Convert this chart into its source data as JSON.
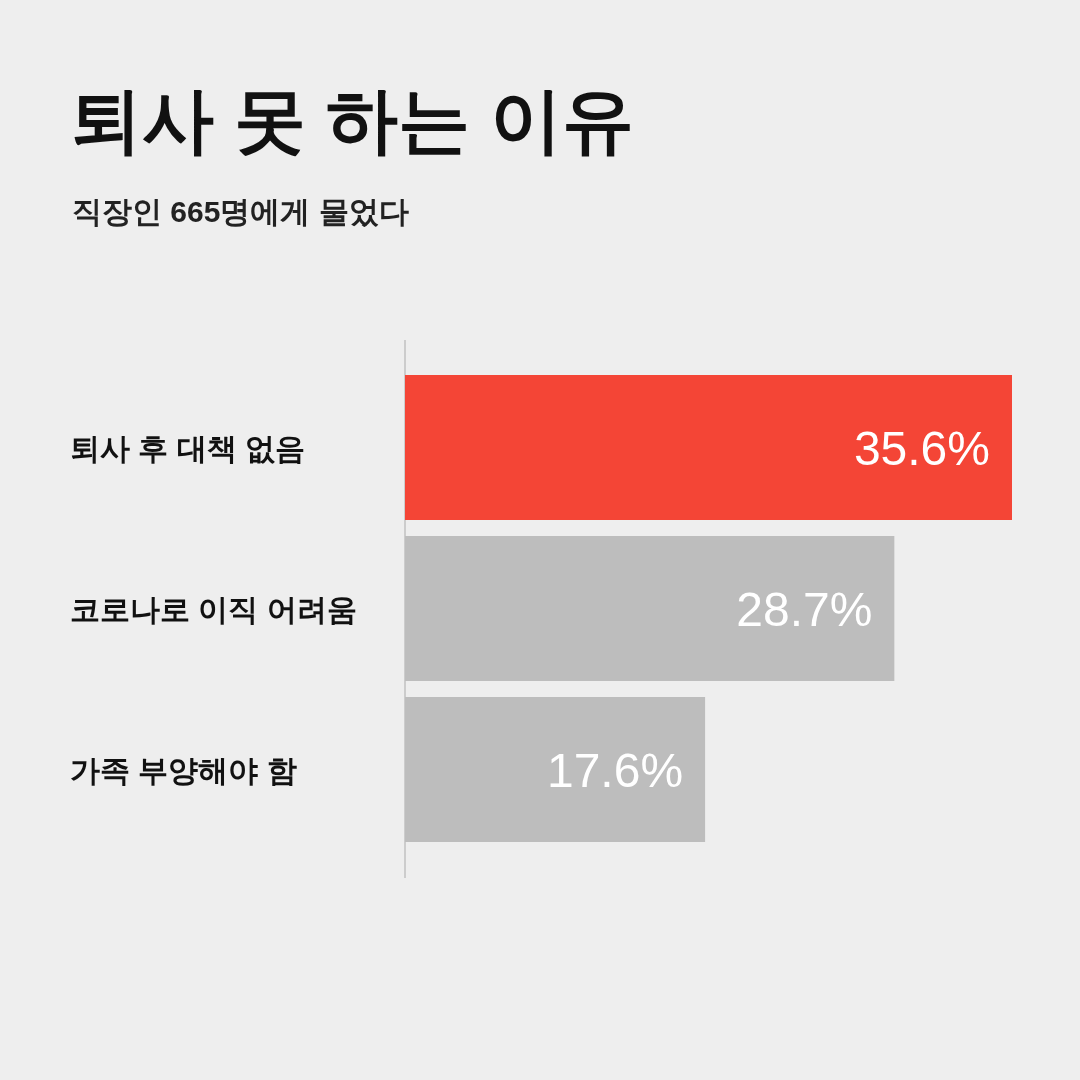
{
  "chart_data": {
    "type": "bar",
    "orientation": "horizontal",
    "title": "퇴사 못 하는 이유",
    "subtitle": "직장인 665명에게 물었다",
    "categories": [
      "퇴사 후 대책 없음",
      "코로나로 이직 어려움",
      "가족 부양해야 함"
    ],
    "values": [
      35.6,
      28.7,
      17.6
    ],
    "value_labels": [
      "35.6%",
      "28.7%",
      "17.6%"
    ],
    "colors": [
      "#f44536",
      "#bdbdbd",
      "#bdbdbd"
    ]
  }
}
